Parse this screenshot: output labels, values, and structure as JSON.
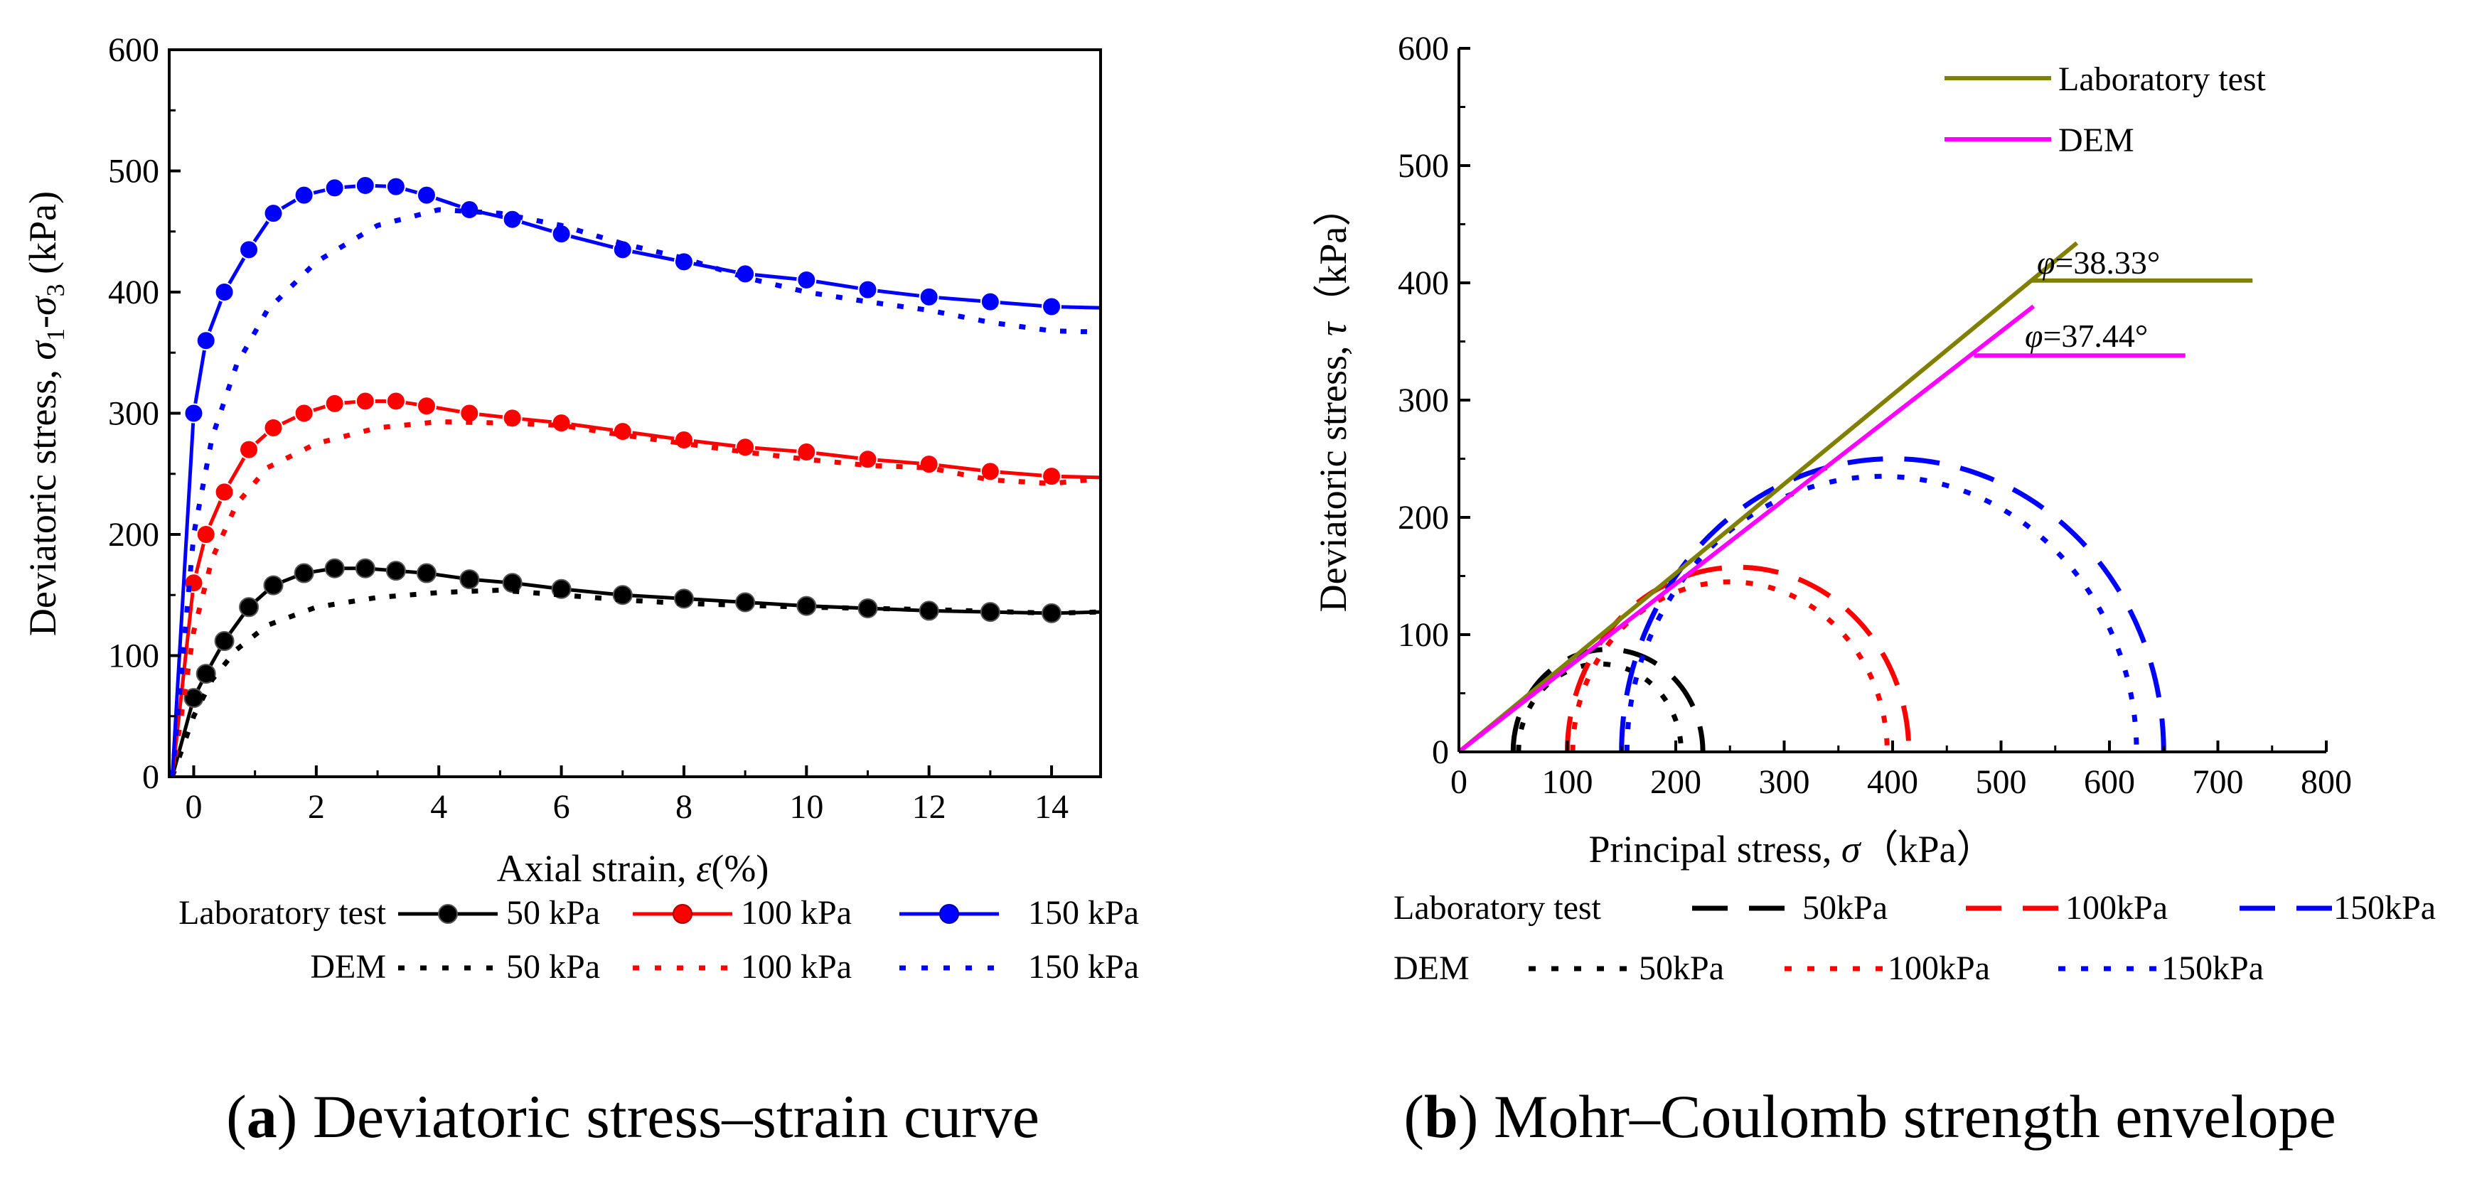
{
  "chart_data": [
    {
      "type": "line",
      "caption_prefix": "a",
      "caption_text": " Deviatoric stress–strain curve",
      "xlabel_pre": "Axial strain, ",
      "xlabel_sym": "ε",
      "xlabel_post": "(%)",
      "ylabel_pre": "Deviatoric stress, ",
      "ylabel_s1": "σ",
      "ylabel_sub1": "1",
      "ylabel_dash": "-",
      "ylabel_s3": "σ",
      "ylabel_sub3": "3",
      "ylabel_post": " (kPa)",
      "xlim": [
        -0.4,
        14.8
      ],
      "ylim": [
        0,
        600
      ],
      "xticks": [
        "0",
        "2",
        "4",
        "6",
        "8",
        "10",
        "12",
        "14"
      ],
      "xtick_values": [
        0,
        2,
        4,
        6,
        8,
        10,
        12,
        14
      ],
      "yticks": [
        "0",
        "100",
        "200",
        "300",
        "400",
        "500",
        "600"
      ],
      "ytick_values": [
        0,
        100,
        200,
        300,
        400,
        500,
        600
      ],
      "legend": {
        "row1_label": "Laboratory test",
        "row2_label": "DEM",
        "entries": [
          "50 kPa",
          "100 kPa",
          "150 kPa"
        ]
      },
      "series": [
        {
          "name": "Laboratory test 50 kPa",
          "color": "#000000",
          "style": "solid-marker",
          "x": [
            -0.35,
            0,
            0.2,
            0.5,
            0.9,
            1.3,
            1.8,
            2.3,
            2.8,
            3.3,
            3.8,
            4.5,
            5.2,
            6,
            7,
            8,
            9,
            10,
            11,
            12,
            13,
            14,
            14.8
          ],
          "y": [
            0,
            65,
            85,
            112,
            140,
            158,
            168,
            172,
            172,
            170,
            168,
            163,
            160,
            155,
            150,
            147,
            144,
            141,
            139,
            137,
            136,
            135,
            136
          ]
        },
        {
          "name": "DEM 50 kPa",
          "color": "#000000",
          "style": "dotted",
          "x": [
            -0.35,
            0,
            0.3,
            0.7,
            1.2,
            2,
            3,
            4,
            5,
            6,
            7,
            8,
            10,
            12,
            14,
            14.8
          ],
          "y": [
            0,
            50,
            80,
            105,
            125,
            140,
            148,
            152,
            154,
            150,
            146,
            143,
            140,
            138,
            135,
            136
          ]
        },
        {
          "name": "Laboratory test 100 kPa",
          "color": "#ff0000",
          "style": "solid-marker",
          "x": [
            -0.35,
            0,
            0.2,
            0.5,
            0.9,
            1.3,
            1.8,
            2.3,
            2.8,
            3.3,
            3.8,
            4.5,
            5.2,
            6,
            7,
            8,
            9,
            10,
            11,
            12,
            13,
            14,
            14.8
          ],
          "y": [
            0,
            160,
            200,
            235,
            270,
            288,
            300,
            308,
            310,
            310,
            306,
            300,
            296,
            292,
            285,
            278,
            272,
            268,
            262,
            258,
            252,
            248,
            247
          ]
        },
        {
          "name": "DEM 100 kPa",
          "color": "#ff0000",
          "style": "dotted",
          "x": [
            -0.35,
            0,
            0.3,
            0.7,
            1.2,
            2,
            3,
            4,
            5,
            6,
            7,
            8,
            9,
            10,
            11,
            12,
            13,
            14,
            14.8
          ],
          "y": [
            0,
            120,
            180,
            225,
            255,
            275,
            288,
            293,
            292,
            290,
            282,
            275,
            268,
            262,
            257,
            255,
            245,
            242,
            246
          ]
        },
        {
          "name": "Laboratory test 150 kPa",
          "color": "#0000ff",
          "style": "solid-marker",
          "x": [
            -0.35,
            0,
            0.2,
            0.5,
            0.9,
            1.3,
            1.8,
            2.3,
            2.8,
            3.3,
            3.8,
            4.5,
            5.2,
            6,
            7,
            8,
            9,
            10,
            11,
            12,
            13,
            14,
            14.8
          ],
          "y": [
            0,
            300,
            360,
            400,
            435,
            465,
            480,
            486,
            488,
            487,
            480,
            468,
            460,
            448,
            435,
            425,
            415,
            410,
            402,
            396,
            392,
            388,
            387
          ]
        },
        {
          "name": "DEM 150 kPa",
          "color": "#0000ff",
          "style": "dotted",
          "x": [
            -0.35,
            0,
            0.3,
            0.7,
            1.2,
            2,
            3,
            4,
            5,
            6,
            7,
            8,
            9,
            10,
            11,
            12,
            13,
            14,
            14.8
          ],
          "y": [
            0,
            200,
            280,
            340,
            385,
            425,
            455,
            468,
            465,
            455,
            440,
            428,
            412,
            400,
            392,
            385,
            375,
            368,
            367
          ]
        }
      ]
    },
    {
      "type": "line",
      "caption_prefix": "b",
      "caption_text": " Mohr–Coulomb strength envelope",
      "xlabel_pre": "Principal stress, ",
      "xlabel_sym": "σ",
      "xlabel_post": "（kPa）",
      "ylabel_pre": "Deviatoric stress, ",
      "ylabel_sym": "τ",
      "ylabel_post": "（kPa）",
      "xlim": [
        0,
        800
      ],
      "ylim": [
        0,
        600
      ],
      "xticks": [
        "0",
        "100",
        "200",
        "300",
        "400",
        "500",
        "600",
        "700",
        "800"
      ],
      "xtick_values": [
        0,
        100,
        200,
        300,
        400,
        500,
        600,
        700,
        800
      ],
      "yticks": [
        "0",
        "100",
        "200",
        "300",
        "400",
        "500",
        "600"
      ],
      "ytick_values": [
        0,
        100,
        200,
        300,
        400,
        500,
        600
      ],
      "envelopes": [
        {
          "name": "Laboratory test",
          "color": "#808000",
          "x": [
            0,
            570
          ],
          "y": [
            0,
            434
          ],
          "angle_label_sym": "φ",
          "angle_label_val": "=38.33°",
          "ref_x": [
            528,
            732
          ],
          "ref_y": 402
        },
        {
          "name": "DEM",
          "color": "#ff00ff",
          "x": [
            0,
            530
          ],
          "y": [
            0,
            380
          ],
          "angle_label_sym": "φ",
          "angle_label_val": "=37.44°",
          "ref_x": [
            475,
            670
          ],
          "ref_y": 338
        }
      ],
      "circles": [
        {
          "name": "Laboratory test 50kPa",
          "color": "#000000",
          "style": "dashed",
          "sigma3": 50,
          "sigma1": 225
        },
        {
          "name": "DEM 50kPa",
          "color": "#000000",
          "style": "dotted",
          "sigma3": 55,
          "sigma1": 205
        },
        {
          "name": "Laboratory test 100kPa",
          "color": "#ff0000",
          "style": "dashed",
          "sigma3": 100,
          "sigma1": 415
        },
        {
          "name": "DEM 100kPa",
          "color": "#ff0000",
          "style": "dotted",
          "sigma3": 105,
          "sigma1": 395
        },
        {
          "name": "Laboratory test 150kPa",
          "color": "#0000ff",
          "style": "dashed",
          "sigma3": 150,
          "sigma1": 650
        },
        {
          "name": "DEM 150kPa",
          "color": "#0000ff",
          "style": "dotted",
          "sigma3": 155,
          "sigma1": 625
        }
      ],
      "legend": {
        "top": [
          "Laboratory test",
          "DEM"
        ],
        "row1_label": "Laboratory test",
        "row2_label": "DEM",
        "entries": [
          "50kPa",
          "100kPa",
          "150kPa"
        ]
      }
    }
  ]
}
